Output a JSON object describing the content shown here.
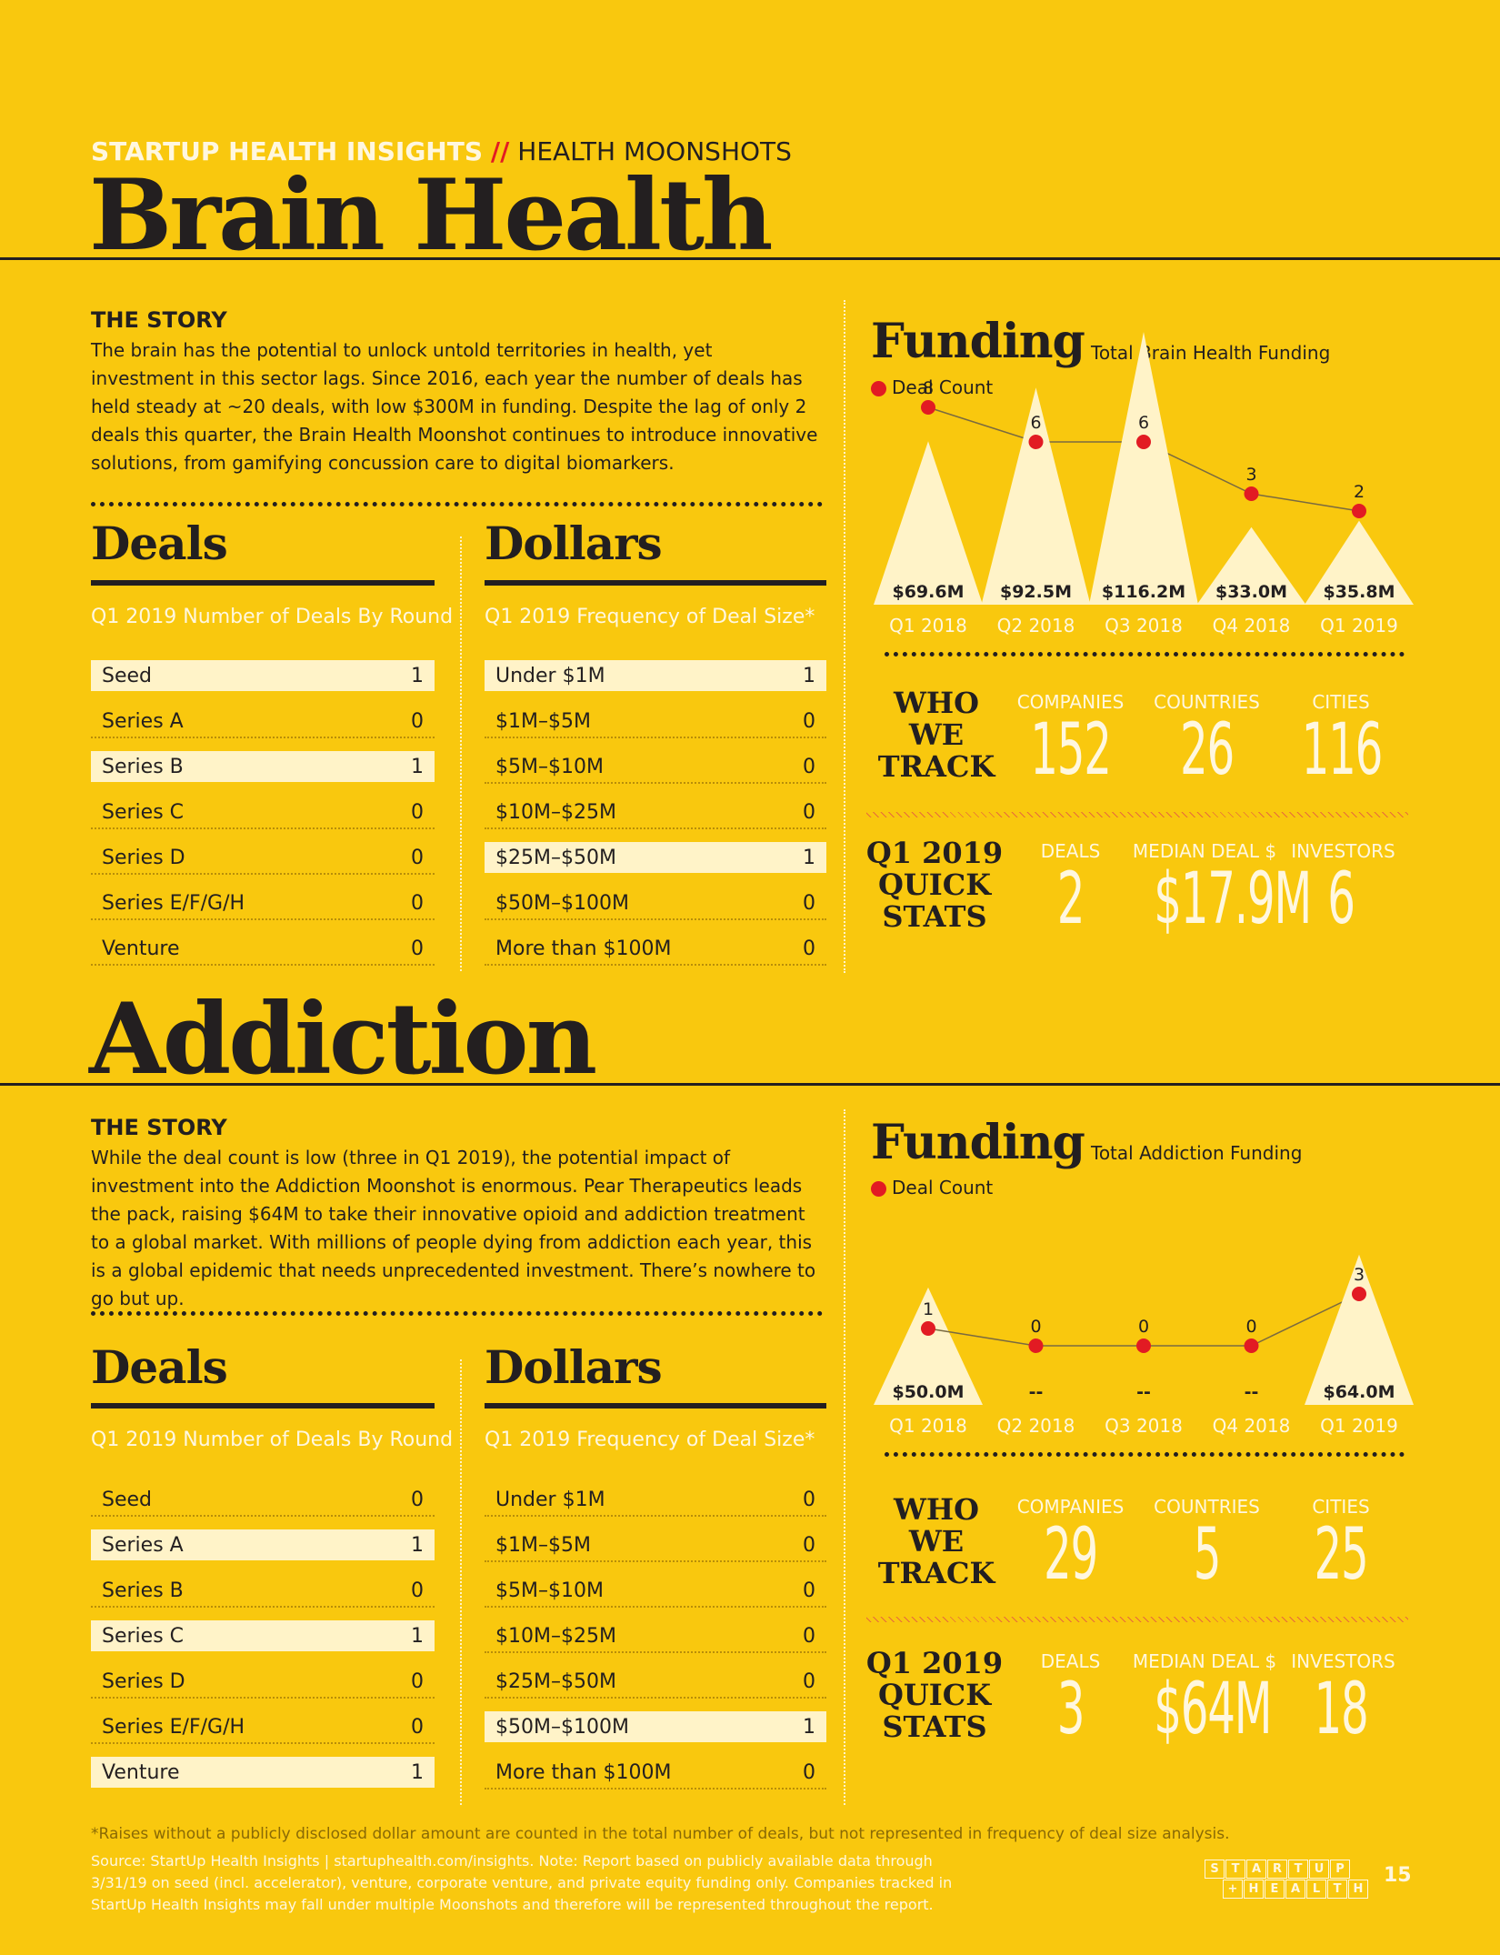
{
  "header": {
    "kicker": "STARTUP HEALTH INSIGHTS",
    "sep": "//",
    "section": "HEALTH MOONSHOTS"
  },
  "brain": {
    "title": "Brain Health",
    "story_heading": "THE STORY",
    "story": "The brain has the potential to unlock untold territories in health, yet investment in this sector lags. Since 2016, each year the number of deals has held steady at ~20 deals, with low $300M in funding. Despite the lag of only 2 deals this quarter, the Brain Health Moonshot continues to introduce innovative solutions, from gamifying concussion care to digital biomarkers.",
    "deals_title": "Deals",
    "deals_sub": "Q1 2019 Number of Deals By Round",
    "deals": [
      {
        "label": "Seed",
        "value": "1",
        "hl": true
      },
      {
        "label": "Series A",
        "value": "0",
        "hl": false
      },
      {
        "label": "Series B",
        "value": "1",
        "hl": true
      },
      {
        "label": "Series C",
        "value": "0",
        "hl": false
      },
      {
        "label": "Series D",
        "value": "0",
        "hl": false
      },
      {
        "label": "Series E/F/G/H",
        "value": "0",
        "hl": false
      },
      {
        "label": "Venture",
        "value": "0",
        "hl": false
      }
    ],
    "dollars_title": "Dollars",
    "dollars_sub": "Q1 2019 Frequency of Deal Size*",
    "dollars": [
      {
        "label": "Under $1M",
        "value": "1",
        "hl": true
      },
      {
        "label": "$1M–$5M",
        "value": "0",
        "hl": false
      },
      {
        "label": "$5M–$10M",
        "value": "0",
        "hl": false
      },
      {
        "label": "$10M–$25M",
        "value": "0",
        "hl": false
      },
      {
        "label": "$25M–$50M",
        "value": "1",
        "hl": true
      },
      {
        "label": "$50M–$100M",
        "value": "0",
        "hl": false
      },
      {
        "label": "More than $100M",
        "value": "0",
        "hl": false
      }
    ],
    "funding_title": "Funding",
    "funding_sub": "Total Brain Health Funding",
    "legend": "Deal Count",
    "track_head": [
      "WHO",
      "WE",
      "TRACK"
    ],
    "track_labels": [
      "COMPANIES",
      "COUNTRIES",
      "CITIES"
    ],
    "track_values": [
      "152",
      "26",
      "116"
    ],
    "quick_head": [
      "Q1 2019",
      "QUICK",
      "STATS"
    ],
    "quick_labels": [
      "DEALS",
      "MEDIAN DEAL $",
      "INVESTORS"
    ],
    "quick_values": [
      "2",
      "$17.9M",
      "6"
    ]
  },
  "addiction": {
    "title": "Addiction",
    "story_heading": "THE STORY",
    "story": "While the deal count is low (three in Q1 2019), the potential impact of investment into the Addiction Moonshot is enormous. Pear Therapeutics leads the pack, raising $64M to take their innovative opioid and addiction treatment to a global market. With millions of people dying from addiction each year, this is a global epidemic that needs unprecedented investment. There’s nowhere to go but up.",
    "deals_title": "Deals",
    "deals_sub": "Q1 2019 Number of Deals By Round",
    "deals": [
      {
        "label": "Seed",
        "value": "0",
        "hl": false
      },
      {
        "label": "Series A",
        "value": "1",
        "hl": true
      },
      {
        "label": "Series B",
        "value": "0",
        "hl": false
      },
      {
        "label": "Series C",
        "value": "1",
        "hl": true
      },
      {
        "label": "Series D",
        "value": "0",
        "hl": false
      },
      {
        "label": "Series E/F/G/H",
        "value": "0",
        "hl": false
      },
      {
        "label": "Venture",
        "value": "1",
        "hl": true
      }
    ],
    "dollars_title": "Dollars",
    "dollars_sub": "Q1 2019 Frequency of Deal Size*",
    "dollars": [
      {
        "label": "Under $1M",
        "value": "0",
        "hl": false
      },
      {
        "label": "$1M–$5M",
        "value": "0",
        "hl": false
      },
      {
        "label": "$5M–$10M",
        "value": "0",
        "hl": false
      },
      {
        "label": "$10M–$25M",
        "value": "0",
        "hl": false
      },
      {
        "label": "$25M–$50M",
        "value": "0",
        "hl": false
      },
      {
        "label": "$50M–$100M",
        "value": "1",
        "hl": true
      },
      {
        "label": "More than $100M",
        "value": "0",
        "hl": false
      }
    ],
    "funding_title": "Funding",
    "funding_sub": "Total Addiction Funding",
    "legend": "Deal Count",
    "track_head": [
      "WHO",
      "WE",
      "TRACK"
    ],
    "track_labels": [
      "COMPANIES",
      "COUNTRIES",
      "CITIES"
    ],
    "track_values": [
      "29",
      "5",
      "25"
    ],
    "quick_head": [
      "Q1 2019",
      "QUICK",
      "STATS"
    ],
    "quick_labels": [
      "DEALS",
      "MEDIAN DEAL $",
      "INVESTORS"
    ],
    "quick_values": [
      "3",
      "$64M",
      "18"
    ]
  },
  "chart_data": [
    {
      "type": "bar",
      "title": "Total Brain Health Funding",
      "categories": [
        "Q1 2018",
        "Q2 2018",
        "Q3 2018",
        "Q4 2018",
        "Q1 2019"
      ],
      "series": [
        {
          "name": "Total Brain Health Funding",
          "values": [
            69.6,
            92.5,
            116.2,
            33.0,
            35.8
          ],
          "labels": [
            "$69.6M",
            "$92.5M",
            "$116.2M",
            "$33.0M",
            "$35.8M"
          ]
        },
        {
          "name": "Deal Count",
          "values": [
            8,
            6,
            6,
            3,
            2
          ]
        }
      ]
    },
    {
      "type": "bar",
      "title": "Total Addiction Funding",
      "categories": [
        "Q1 2018",
        "Q2 2018",
        "Q3 2018",
        "Q4 2018",
        "Q1 2019"
      ],
      "series": [
        {
          "name": "Total Addiction Funding",
          "values": [
            50.0,
            0,
            0,
            0,
            64.0
          ],
          "labels": [
            "$50.0M",
            "--",
            "--",
            "--",
            "$64.0M"
          ]
        },
        {
          "name": "Deal Count",
          "values": [
            1,
            0,
            0,
            0,
            3
          ]
        }
      ]
    }
  ],
  "footer": {
    "note": "*Raises without a publicly disclosed dollar amount are counted in the total number of deals, but not represented in frequency of deal size analysis.",
    "source": [
      "Source: StartUp Health Insights | startuphealth.com/insights. Note: Report based on publicly available data through",
      "3/31/19 on seed (incl. accelerator), venture, corporate venture, and private equity funding only. Companies tracked in",
      "StartUp Health Insights may fall under multiple Moonshots and therefore will be represented throughout the report."
    ],
    "logo_top": [
      "S",
      "T",
      "A",
      "R",
      "T",
      "U",
      "P"
    ],
    "logo_bottom": [
      "+",
      "H",
      "E",
      "A",
      "L",
      "T",
      "H"
    ],
    "page": "15"
  },
  "colors": {
    "background": "#F9C80E",
    "ink": "#231F20",
    "cream": "#FFF3C8",
    "dot": "#E21B23"
  }
}
